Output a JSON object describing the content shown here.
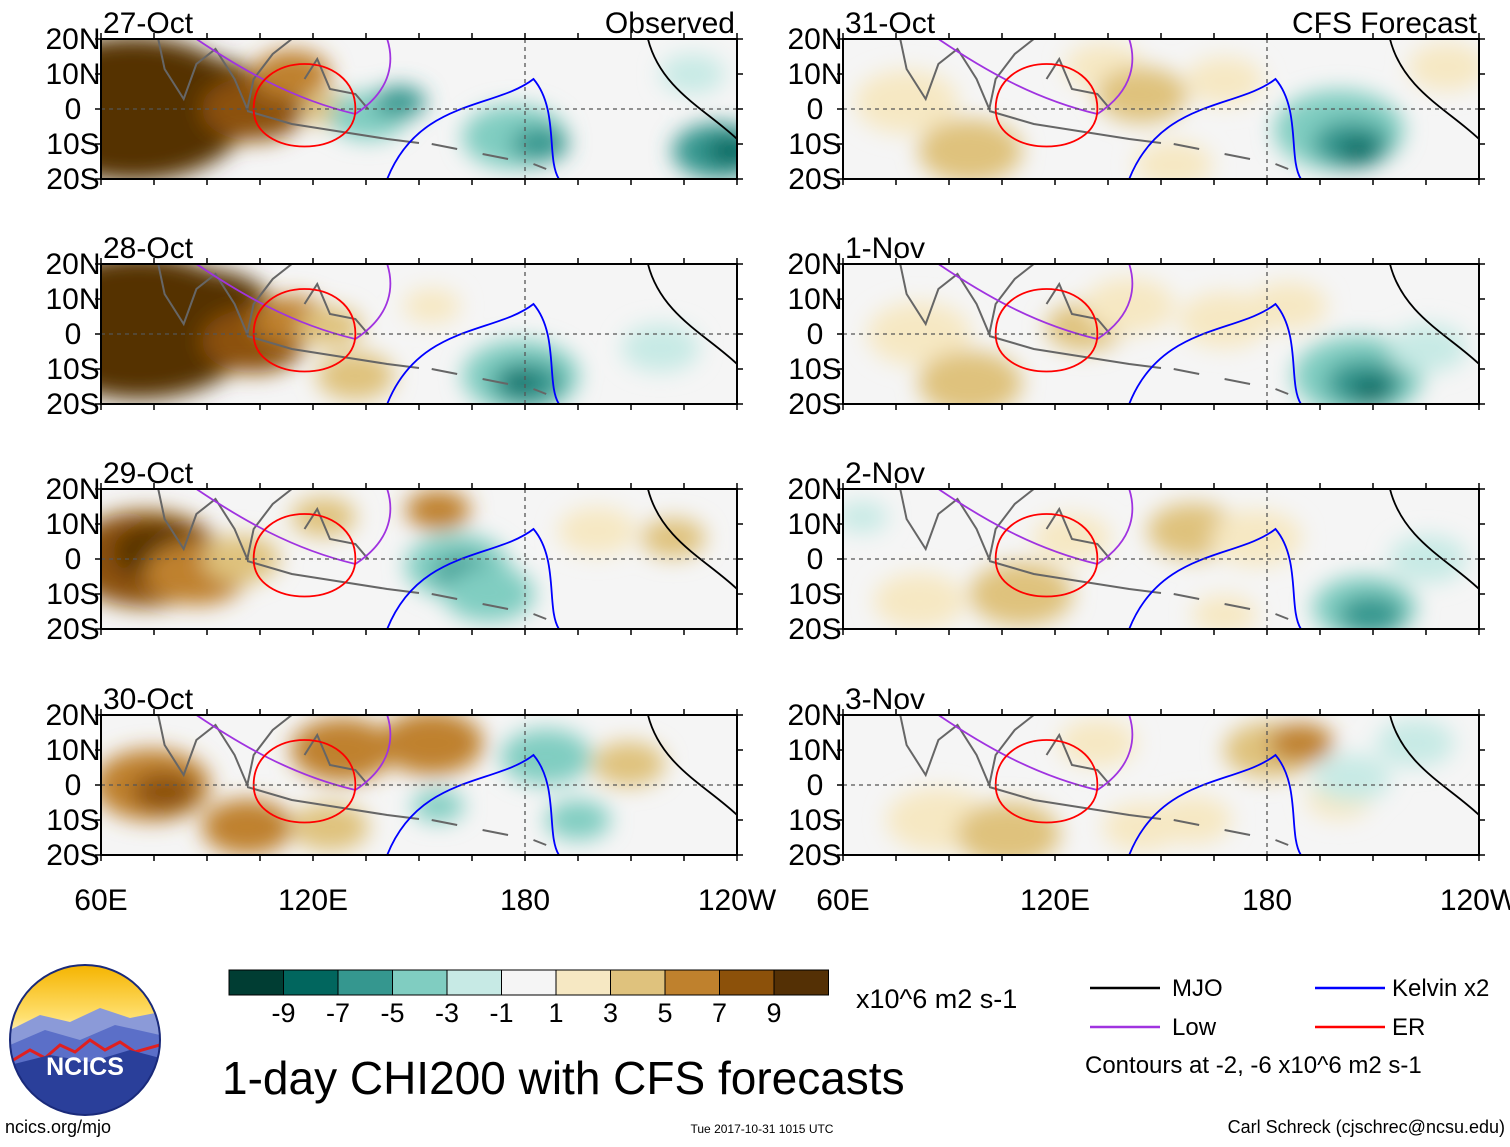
{
  "chart_data": {
    "type": "heatmap",
    "title": "1-day CHI200 with CFS forecasts",
    "units": "x10^6 m2 s-1",
    "observed_label": "Observed",
    "forecast_label": "CFS Forecast",
    "x_ticks": [
      "60E",
      "120E",
      "180",
      "120W"
    ],
    "y_ticks": [
      "20N",
      "10N",
      "0",
      "10S",
      "20S"
    ],
    "observed_dates": [
      "27-Oct",
      "28-Oct",
      "29-Oct",
      "30-Oct"
    ],
    "forecast_dates": [
      "31-Oct",
      "1-Nov",
      "2-Nov",
      "3-Nov"
    ],
    "colorbar": {
      "labels": [
        "-9",
        "-7",
        "-5",
        "-3",
        "-1",
        "1",
        "3",
        "5",
        "7",
        "9"
      ],
      "colors": [
        "#003d33",
        "#01665e",
        "#35978f",
        "#80cdc1",
        "#c7eae5",
        "#f5f5f5",
        "#f6e8c3",
        "#dfc27d",
        "#bf812d",
        "#8c510a",
        "#543005"
      ]
    },
    "contours": {
      "items": [
        {
          "name": "MJO",
          "color": "#000000"
        },
        {
          "name": "Kelvin x2",
          "color": "#0000ff"
        },
        {
          "name": "Low",
          "color": "#a033e0"
        },
        {
          "name": "ER",
          "color": "#ff0000"
        }
      ],
      "note": "Contours at -2, -6 x10^6 m2 s-1"
    }
  },
  "footer": {
    "logo_text": "NCICS",
    "left": "ncics.org/mjo",
    "center": "Tue 2017-10-31 1015 UTC",
    "right": "Carl Schreck (cjschrec@ncsu.edu)"
  }
}
